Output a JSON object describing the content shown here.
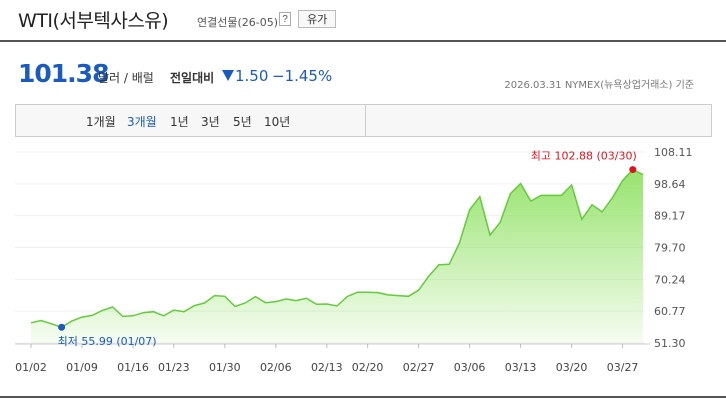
{
  "header": {
    "title": "WTI(서부텍사스유)",
    "subtitle": "연결선물(26-05)",
    "help": "?",
    "category": "유가"
  },
  "quote": {
    "price": "101.38",
    "unit": "달러 / 배럴",
    "change_label": "전일대비",
    "change": "1.50",
    "change_pct": "−1.45%",
    "source": "2026.03.31  NYMEX(뉴욕상업거래소) 기준"
  },
  "tabs": [
    "1개월",
    "3개월",
    "1년",
    "3년",
    "5년",
    "10년"
  ],
  "selected_tab": 1,
  "chart_data": {
    "type": "area",
    "categories": [
      "01/02",
      null,
      null,
      null,
      null,
      "01/09",
      null,
      null,
      null,
      null,
      "01/16",
      null,
      null,
      null,
      "01/23",
      null,
      null,
      null,
      null,
      "01/30",
      null,
      null,
      null,
      null,
      "02/06",
      null,
      null,
      null,
      null,
      "02/13",
      null,
      null,
      null,
      "02/20",
      null,
      null,
      null,
      null,
      "02/27",
      null,
      null,
      null,
      null,
      "03/06",
      null,
      null,
      null,
      null,
      "03/13",
      null,
      null,
      null,
      null,
      "03/20",
      null,
      null,
      null,
      null,
      "03/27",
      null,
      null
    ],
    "values": [
      57.3,
      58.0,
      57.0,
      55.99,
      57.8,
      59.0,
      59.5,
      61.0,
      62.0,
      59.2,
      59.4,
      60.3,
      60.6,
      59.4,
      61.1,
      60.6,
      62.4,
      63.2,
      65.4,
      65.2,
      62.2,
      63.2,
      65.1,
      63.3,
      63.6,
      64.4,
      63.9,
      64.6,
      62.8,
      62.9,
      62.3,
      65.1,
      66.4,
      66.4,
      66.3,
      65.6,
      65.4,
      65.2,
      67.0,
      71.2,
      74.6,
      74.7,
      81.0,
      90.9,
      94.8,
      83.4,
      87.2,
      95.7,
      98.7,
      93.5,
      95.2,
      95.2,
      95.2,
      98.3,
      88.1,
      92.4,
      90.3,
      94.5,
      99.6,
      102.88,
      101.38
    ],
    "ylim": [
      51.3,
      108.11
    ],
    "yticks": [
      108.11,
      98.64,
      89.17,
      {
        "value": 79.7,
        "label": "79.70"
      },
      70.24,
      60.77,
      {
        "value": 51.3,
        "label": "51.30"
      }
    ],
    "color": "#62cc3a",
    "grid": true,
    "high_label": "최고 102.88 (03/30)",
    "high_color": "#e0131c",
    "low_label": "최저 55.99 (01/07)",
    "low_color": "#1a5bbf"
  }
}
